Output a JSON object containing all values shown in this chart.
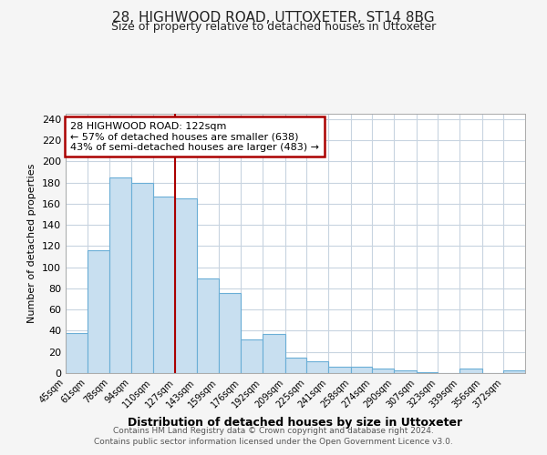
{
  "title": "28, HIGHWOOD ROAD, UTTOXETER, ST14 8BG",
  "subtitle": "Size of property relative to detached houses in Uttoxeter",
  "xlabel": "Distribution of detached houses by size in Uttoxeter",
  "ylabel": "Number of detached properties",
  "bin_labels": [
    "45sqm",
    "61sqm",
    "78sqm",
    "94sqm",
    "110sqm",
    "127sqm",
    "143sqm",
    "159sqm",
    "176sqm",
    "192sqm",
    "209sqm",
    "225sqm",
    "241sqm",
    "258sqm",
    "274sqm",
    "290sqm",
    "307sqm",
    "323sqm",
    "339sqm",
    "356sqm",
    "372sqm"
  ],
  "bar_values": [
    38,
    116,
    185,
    180,
    167,
    165,
    89,
    76,
    32,
    37,
    15,
    11,
    6,
    6,
    4,
    3,
    1,
    0,
    4,
    0,
    3
  ],
  "bin_starts": [
    45,
    61,
    78,
    94,
    110,
    127,
    143,
    159,
    176,
    192,
    209,
    225,
    241,
    258,
    274,
    290,
    307,
    323,
    339,
    356,
    372
  ],
  "bar_color": "#c8dff0",
  "bar_edge_color": "#6aaed6",
  "red_line_x": 127,
  "red_line_color": "#aa0000",
  "annotation_text_line1": "28 HIGHWOOD ROAD: 122sqm",
  "annotation_text_line2": "← 57% of detached houses are smaller (638)",
  "annotation_text_line3": "43% of semi-detached houses are larger (483) →",
  "ylim": [
    0,
    245
  ],
  "yticks": [
    0,
    20,
    40,
    60,
    80,
    100,
    120,
    140,
    160,
    180,
    200,
    220,
    240
  ],
  "fig_bg": "#f5f5f5",
  "plot_bg": "#ffffff",
  "grid_color": "#c8d4e0",
  "footer_line1": "Contains HM Land Registry data © Crown copyright and database right 2024.",
  "footer_line2": "Contains public sector information licensed under the Open Government Licence v3.0."
}
